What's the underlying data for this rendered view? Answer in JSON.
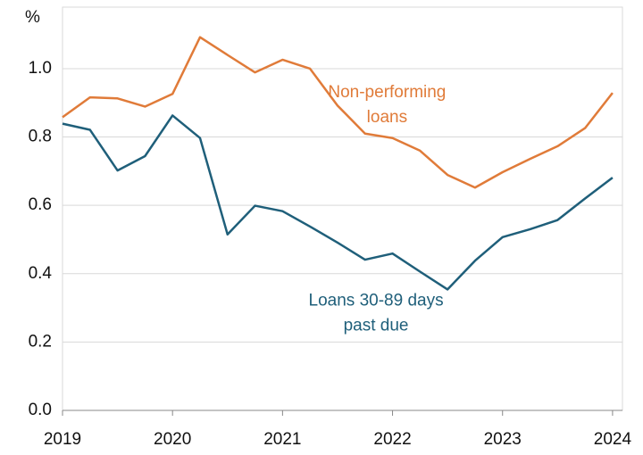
{
  "chart_data": {
    "type": "line",
    "y_label": "%",
    "x": [
      2019,
      2019.25,
      2019.5,
      2019.75,
      2020,
      2020.25,
      2020.5,
      2020.75,
      2021,
      2021.25,
      2021.5,
      2021.75,
      2022,
      2022.25,
      2022.5,
      2022.75,
      2023,
      2023.25,
      2023.5,
      2023.75,
      2024
    ],
    "series": [
      {
        "name": "Non-performing loans",
        "color": "#e07b39",
        "values": [
          0.858,
          0.916,
          0.913,
          0.889,
          0.926,
          1.092,
          1.04,
          0.989,
          1.026,
          1.0,
          0.892,
          0.81,
          0.797,
          0.76,
          0.689,
          0.652,
          0.697,
          0.736,
          0.773,
          0.826,
          0.929
        ]
      },
      {
        "name": "Loans 30-89 days past due",
        "color": "#1f5f7a",
        "values": [
          0.839,
          0.821,
          0.702,
          0.744,
          0.863,
          0.797,
          0.515,
          0.599,
          0.583,
          0.538,
          0.491,
          0.441,
          0.459,
          0.406,
          0.354,
          0.438,
          0.507,
          0.53,
          0.557,
          0.62,
          0.681
        ]
      }
    ],
    "annotations": [
      {
        "lines": [
          "Non-performing",
          "loans"
        ],
        "x": 2021.95,
        "y": 0.93,
        "series": 0
      },
      {
        "lines": [
          "Loans 30-89 days",
          "past due"
        ],
        "x": 2021.85,
        "y": 0.32,
        "series": 1
      }
    ],
    "xlim": [
      2019,
      2024.09
    ],
    "xticks": [
      2019,
      2020,
      2021,
      2022,
      2023,
      2024
    ],
    "ylim": [
      0,
      1.18
    ],
    "yticks": [
      {
        "value": 0,
        "label": "0.0"
      },
      0.2,
      0.4,
      0.6,
      0.8,
      {
        "value": 1,
        "label": "1.0"
      }
    ],
    "grid": true
  }
}
